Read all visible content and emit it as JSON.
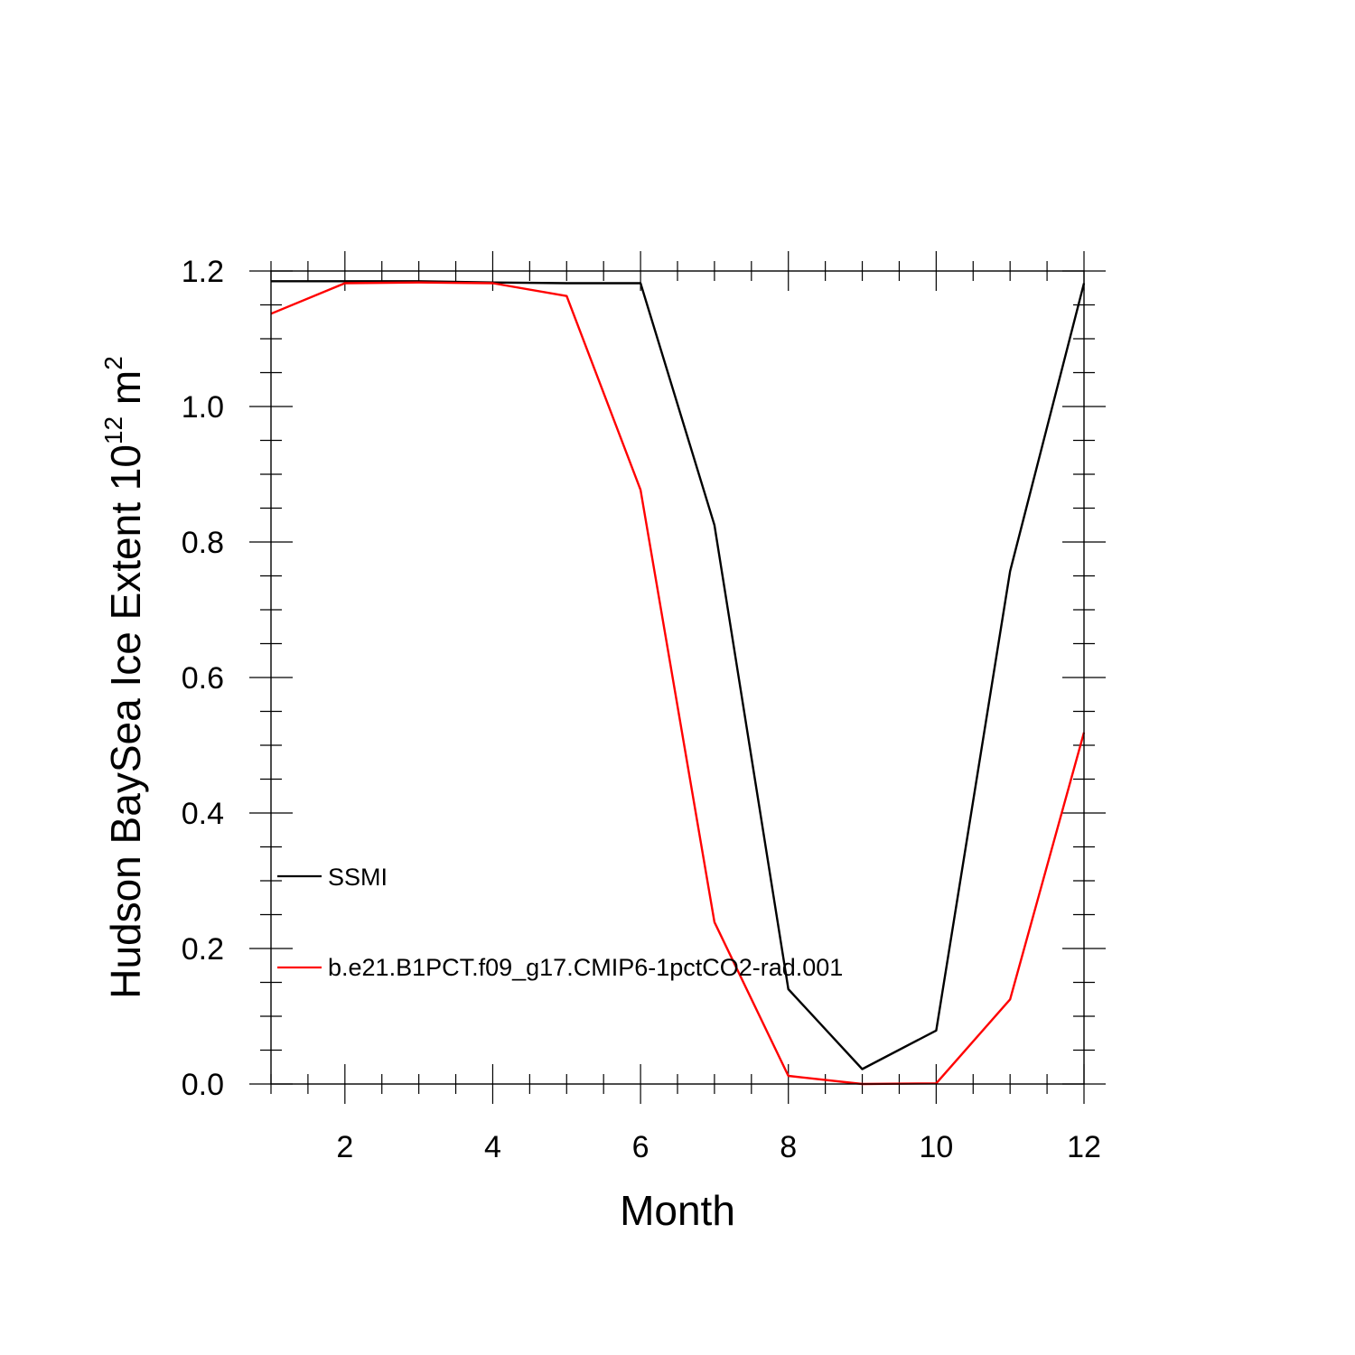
{
  "chart_data": {
    "type": "line",
    "title": "",
    "xlabel": "Month",
    "ylabel": "Hudson BaySea Ice Extent 10",
    "ylabel_exponent": "12",
    "ylabel_unit": " m",
    "ylabel_unit_exponent": "2",
    "xlim": [
      1,
      12
    ],
    "ylim": [
      0,
      1.2
    ],
    "x_ticks": [
      2,
      4,
      6,
      8,
      10,
      12
    ],
    "x_tick_labels": [
      "2",
      "4",
      "6",
      "8",
      "10",
      "12"
    ],
    "y_ticks": [
      0,
      0.2,
      0.4,
      0.6,
      0.8,
      1.0,
      1.2
    ],
    "y_tick_labels": [
      "0.0",
      "0.2",
      "0.4",
      "0.6",
      "0.8",
      "1.0",
      "1.2"
    ],
    "grid": false,
    "legend_position": "lower-left",
    "x": [
      1,
      2,
      3,
      4,
      5,
      6,
      7,
      8,
      9,
      10,
      11,
      12
    ],
    "series": [
      {
        "name": "SSMI",
        "color": "#000000",
        "values": [
          1.185,
          1.185,
          1.185,
          1.183,
          1.182,
          1.182,
          0.825,
          0.14,
          0.022,
          0.079,
          0.757,
          1.182
        ]
      },
      {
        "name": "b.e21.B1PCT.f09_g17.CMIP6-1pctCO2-rad.001",
        "color": "#ff0000",
        "values": [
          1.137,
          1.182,
          1.183,
          1.182,
          1.163,
          0.877,
          0.239,
          0.012,
          0.0,
          0.001,
          0.125,
          0.519
        ]
      }
    ]
  }
}
